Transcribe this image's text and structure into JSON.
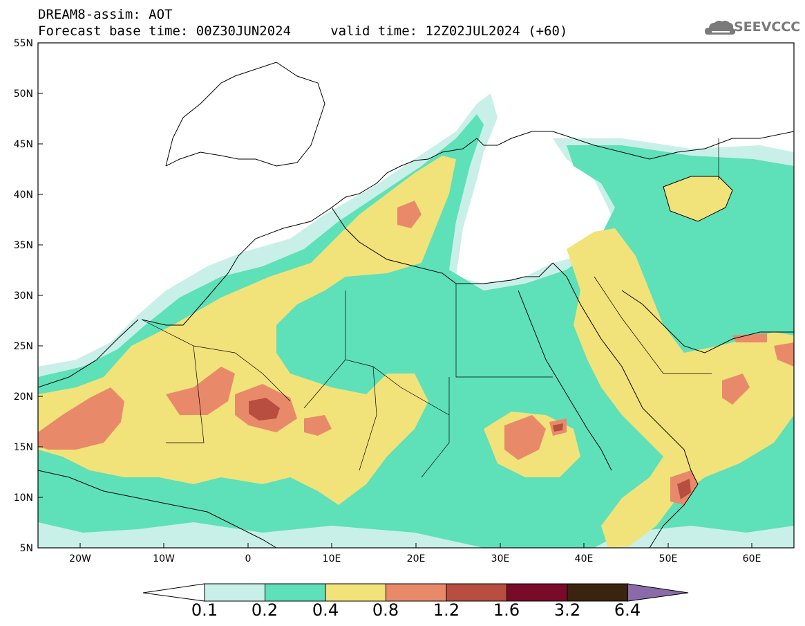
{
  "title": {
    "line1": "DREAM8-assim: AOT",
    "line2": "Forecast base time: 00Z30JUN2024     valid time: 12Z02JUL2024 (+60)"
  },
  "logo": {
    "text": "SEEVCCC"
  },
  "map": {
    "lon_range": [
      -25,
      65
    ],
    "lat_range": [
      5,
      55
    ],
    "lat_ticks": [
      "55N",
      "50N",
      "45N",
      "40N",
      "35N",
      "30N",
      "25N",
      "20N",
      "15N",
      "10N",
      "5N"
    ],
    "lon_ticks": [
      "20W",
      "10W",
      "0",
      "10E",
      "20E",
      "30E",
      "40E",
      "50E",
      "60E"
    ]
  },
  "colorbar": {
    "labels": [
      "0.1",
      "0.2",
      "0.4",
      "0.8",
      "1.2",
      "1.6",
      "3.2",
      "6.4"
    ],
    "colors": [
      "#c8f0e8",
      "#5ee0b8",
      "#f2e27a",
      "#e88a6a",
      "#b84e40",
      "#7a0a2a",
      "#3a2410",
      "#8a6aa8"
    ]
  }
}
